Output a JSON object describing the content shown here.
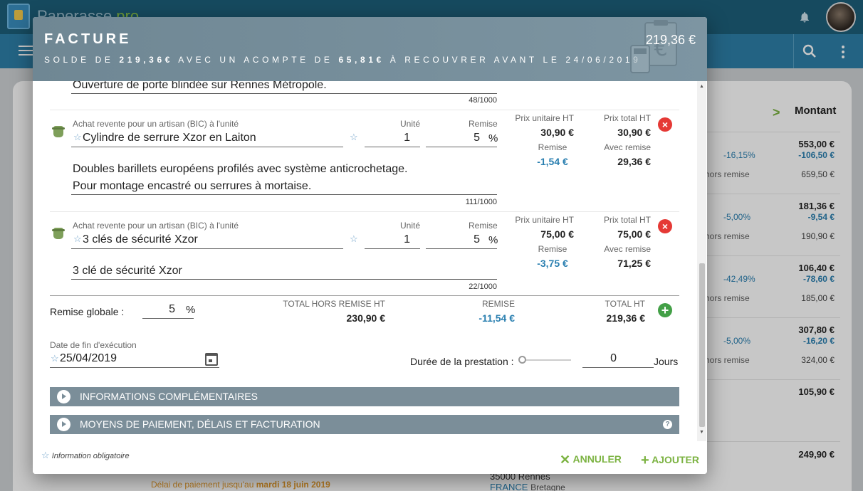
{
  "app": {
    "name": "Paperasse",
    "name_suffix": ".pro"
  },
  "background": {
    "col_header": "Montant",
    "rows": [
      {
        "amount": "553,00 €",
        "discount": "-106,50 €",
        "pct": "-16,15%",
        "hr_label": "hors remise",
        "hr_value": "659,50 €"
      },
      {
        "amount": "181,36 €",
        "discount": "-9,54 €",
        "pct": "-5,00%",
        "hr_label": "hors remise",
        "hr_value": "190,90 €"
      },
      {
        "amount": "106,40 €",
        "discount": "-78,60 €",
        "pct": "-42,49%",
        "hr_label": "hors remise",
        "hr_value": "185,00 €"
      },
      {
        "amount": "307,80 €",
        "discount": "-16,20 €",
        "pct": "-5,00%",
        "hr_label": "hors remise",
        "hr_value": "324,00 €"
      },
      {
        "amount": "105,90 €"
      },
      {
        "amount": "249,90 €"
      }
    ],
    "due": {
      "prefix": "Délai de paiement jusqu'au ",
      "date": "mardi 18 juin 2019"
    },
    "address": {
      "postal": "35000 Rennes",
      "country": "FRANCE",
      "region": "Bretagne"
    }
  },
  "modal": {
    "title": "FACTURE",
    "total": "219,36 €",
    "subtitle": {
      "p1": "SOLDE DE ",
      "solde": "219,36€",
      "p2": " AVEC UN ACOMPTE DE ",
      "acompte": "65,81€",
      "p3": " À RECOUVRER AVANT LE 24/06/2019"
    },
    "top_desc": {
      "text": "Ouverture de porte blindée sur Rennes Métropole.",
      "count": "48/1000"
    },
    "items": [
      {
        "category": "Achat revente pour un artisan (BIC) à l'unité",
        "name": "Cylindre de serrure Xzor en Laiton",
        "unit_label": "Unité",
        "qty": "1",
        "remise_label": "Remise",
        "remise": "5",
        "pct_sign": "%",
        "desc1": "Doubles barillets européens profilés avec système anticrochetage.",
        "desc2": "Pour montage encastré ou serrures à mortaise.",
        "count": "111/1000",
        "pu_label": "Prix unitaire HT",
        "pu": "30,90 €",
        "pt_label": "Prix total HT",
        "pt": "30,90 €",
        "r_label": "Remise",
        "r": "-1,54 €",
        "ar_label": "Avec remise",
        "ar": "29,36 €"
      },
      {
        "category": "Achat revente pour un artisan (BIC) à l'unité",
        "name": "3 clés de sécurité Xzor",
        "unit_label": "Unité",
        "qty": "1",
        "remise_label": "Remise",
        "remise": "5",
        "pct_sign": "%",
        "desc1": "3 clé de sécurité Xzor",
        "count": "22/1000",
        "pu_label": "Prix unitaire HT",
        "pu": "75,00 €",
        "pt_label": "Prix total HT",
        "pt": "75,00 €",
        "r_label": "Remise",
        "r": "-3,75 €",
        "ar_label": "Avec remise",
        "ar": "71,25 €"
      }
    ],
    "totals": {
      "global_label": "Remise globale :",
      "global_value": "5",
      "pct_sign": "%",
      "thr_label": "TOTAL HORS REMISE HT",
      "thr": "230,90 €",
      "rem_label": "REMISE",
      "rem": "-11,54 €",
      "tht_label": "TOTAL HT",
      "tht": "219,36 €"
    },
    "date_label": "Date de fin d'exécution",
    "date_value": "25/04/2019",
    "duree_label": "Durée de la prestation :",
    "duree_value": "0",
    "duree_unit": "Jours",
    "sections": [
      "INFORMATIONS COMPLÉMENTAIRES",
      "MOYENS DE PAIEMENT, DÉLAIS ET FACTURATION"
    ],
    "footer": {
      "note": "Information obligatoire",
      "cancel": "ANNULER",
      "add": "AJOUTER"
    }
  },
  "colors": {
    "accent_green": "#7cb342",
    "header_blue": "#1d5f7a",
    "modal_header": "#7d95a2",
    "discount_blue": "#2a7fb0",
    "delete_red": "#e53935"
  }
}
